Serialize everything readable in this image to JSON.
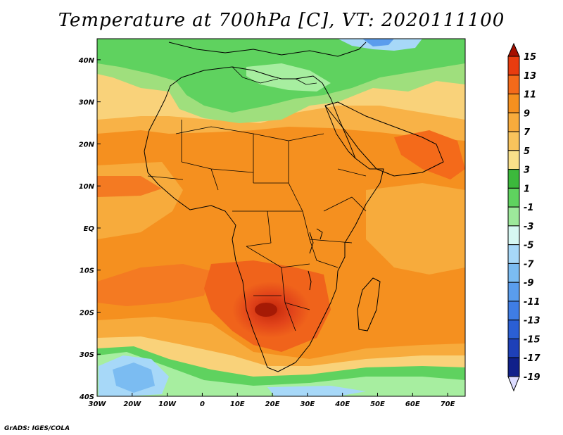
{
  "title": "Temperature at 700hPa [C], VT: 2020111100",
  "credit": "GrADS: IGES/COLA",
  "map": {
    "lon_range": [
      -30,
      75
    ],
    "lat_range": [
      -40,
      45
    ],
    "lon_ticks": [
      "30W",
      "20W",
      "10W",
      "0",
      "10E",
      "20E",
      "30E",
      "40E",
      "50E",
      "60E",
      "70E"
    ],
    "lat_ticks": [
      "40N",
      "30N",
      "20N",
      "10N",
      "EQ",
      "10S",
      "20S",
      "30S",
      "40S"
    ]
  },
  "colorbar": {
    "labels": [
      "15",
      "13",
      "11",
      "9",
      "7",
      "5",
      "3",
      "1",
      "-1",
      "-3",
      "-5",
      "-7",
      "-9",
      "-11",
      "-13",
      "-15",
      "-17",
      "-19"
    ],
    "colors": [
      "#a50f00",
      "#e83c0f",
      "#f46a1a",
      "#f5901f",
      "#f7ab3c",
      "#f8c35c",
      "#f9e08a",
      "#3cb93c",
      "#5fd25f",
      "#9de89b",
      "#d6f7f2",
      "#a7d8f8",
      "#7bbcf2",
      "#5a9ded",
      "#3f7de4",
      "#2b5fd4",
      "#1e40b8",
      "#10208a",
      "#dcdcff"
    ]
  }
}
